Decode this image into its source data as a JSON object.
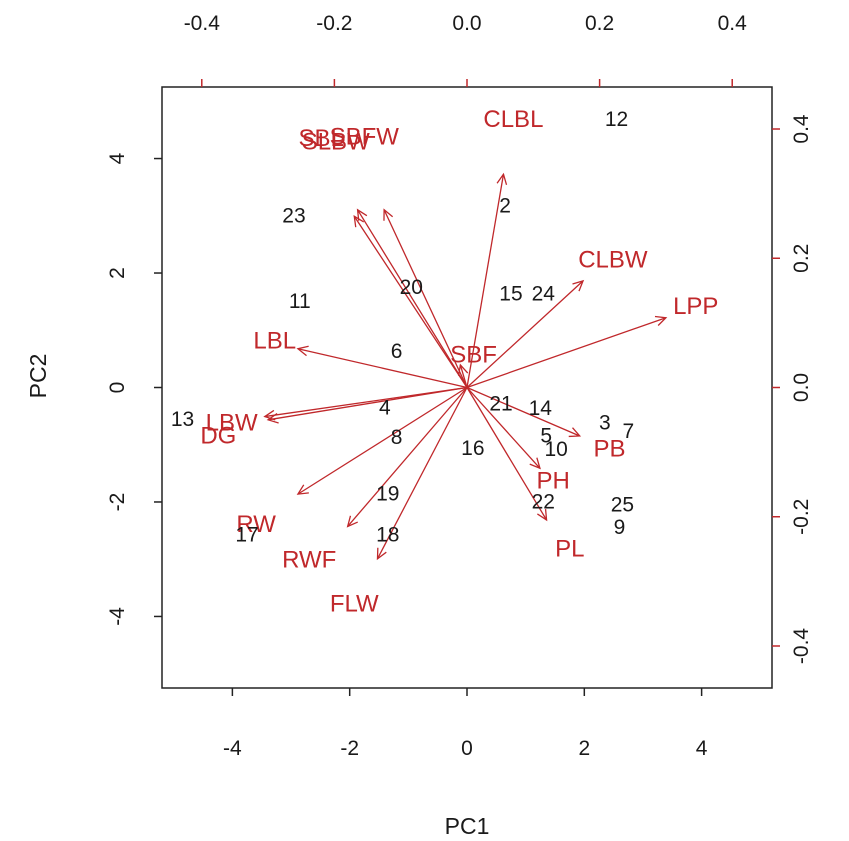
{
  "chart_data": {
    "type": "scatter",
    "subtype": "biplot",
    "xlabel": "PC1",
    "ylabel": "PC2",
    "bottom_axis": {
      "ticks": [
        -4,
        -2,
        0,
        2,
        4
      ],
      "labels": [
        "-4",
        "-2",
        "0",
        "2",
        "4"
      ],
      "range": [
        -5.2,
        5.2
      ]
    },
    "left_axis": {
      "ticks": [
        -4,
        -2,
        0,
        2,
        4
      ],
      "labels": [
        "-4",
        "-2",
        "0",
        "2",
        "4"
      ],
      "range": [
        -5.25,
        5.25
      ]
    },
    "top_axis": {
      "ticks": [
        -0.4,
        -0.2,
        0.0,
        0.2,
        0.4
      ],
      "labels": [
        "-0.4",
        "-0.2",
        "0.0",
        "0.2",
        "0.4"
      ],
      "range": [
        -0.46,
        0.46
      ]
    },
    "right_axis": {
      "ticks": [
        -0.4,
        -0.2,
        0.0,
        0.2,
        0.4
      ],
      "labels": [
        "-0.4",
        "-0.2",
        "0.0",
        "0.2",
        "0.4"
      ],
      "range": [
        -0.465,
        0.465
      ]
    },
    "observations": [
      {
        "label": "12",
        "x": 2.55,
        "y": 4.68
      },
      {
        "label": "2",
        "x": 0.65,
        "y": 3.17
      },
      {
        "label": "23",
        "x": -2.95,
        "y": 3.0
      },
      {
        "label": "20",
        "x": -0.95,
        "y": 1.75
      },
      {
        "label": "15",
        "x": 0.75,
        "y": 1.63
      },
      {
        "label": "24",
        "x": 1.3,
        "y": 1.63
      },
      {
        "label": "11",
        "x": -2.85,
        "y": 1.5
      },
      {
        "label": "6",
        "x": -1.2,
        "y": 0.63
      },
      {
        "label": "21",
        "x": 0.58,
        "y": -0.29
      },
      {
        "label": "14",
        "x": 1.25,
        "y": -0.37
      },
      {
        "label": "4",
        "x": -1.4,
        "y": -0.36
      },
      {
        "label": "13",
        "x": -4.85,
        "y": -0.56
      },
      {
        "label": "3",
        "x": 2.35,
        "y": -0.62
      },
      {
        "label": "7",
        "x": 2.75,
        "y": -0.77
      },
      {
        "label": "8",
        "x": -1.2,
        "y": -0.87
      },
      {
        "label": "5",
        "x": 1.35,
        "y": -0.85
      },
      {
        "label": "10",
        "x": 1.52,
        "y": -1.08
      },
      {
        "label": "16",
        "x": 0.1,
        "y": -1.07
      },
      {
        "label": "19",
        "x": -1.35,
        "y": -1.86
      },
      {
        "label": "22",
        "x": 1.3,
        "y": -2.0
      },
      {
        "label": "25",
        "x": 2.65,
        "y": -2.05
      },
      {
        "label": "9",
        "x": 2.6,
        "y": -2.45
      },
      {
        "label": "17",
        "x": -3.75,
        "y": -2.58
      },
      {
        "label": "18",
        "x": -1.35,
        "y": -2.58
      }
    ],
    "loadings": [
      {
        "label": "CLBL",
        "x": 0.055,
        "y": 0.33,
        "label_x": 0.07,
        "label_y": 0.415
      },
      {
        "label": "SLBW",
        "x": -0.165,
        "y": 0.275,
        "label_x": -0.198,
        "label_y": 0.38
      },
      {
        "label": "SBFW",
        "x": -0.125,
        "y": 0.275,
        "label_x": -0.155,
        "label_y": 0.388
      },
      {
        "label": "SBL",
        "x": -0.17,
        "y": 0.265,
        "label_x": -0.22,
        "label_y": 0.385
      },
      {
        "label": "CLBW",
        "x": 0.175,
        "y": 0.165,
        "label_x": 0.22,
        "label_y": 0.197
      },
      {
        "label": "LPP",
        "x": 0.3,
        "y": 0.108,
        "label_x": 0.345,
        "label_y": 0.125
      },
      {
        "label": "LBL",
        "x": -0.255,
        "y": 0.06,
        "label_x": -0.29,
        "label_y": 0.072
      },
      {
        "label": "SBF",
        "x": -0.01,
        "y": 0.035,
        "label_x": 0.01,
        "label_y": 0.05
      },
      {
        "label": "LBW",
        "x": -0.305,
        "y": -0.045,
        "label_x": -0.355,
        "label_y": -0.055
      },
      {
        "label": "DG",
        "x": -0.3,
        "y": -0.05,
        "label_x": -0.375,
        "label_y": -0.075
      },
      {
        "label": "PB",
        "x": 0.17,
        "y": -0.075,
        "label_x": 0.215,
        "label_y": -0.095
      },
      {
        "label": "PH",
        "x": 0.11,
        "y": -0.125,
        "label_x": 0.13,
        "label_y": -0.145
      },
      {
        "label": "PL",
        "x": 0.12,
        "y": -0.205,
        "label_x": 0.155,
        "label_y": -0.25
      },
      {
        "label": "RW",
        "x": -0.255,
        "y": -0.165,
        "label_x": -0.318,
        "label_y": -0.212
      },
      {
        "label": "RWF",
        "x": -0.18,
        "y": -0.215,
        "label_x": -0.238,
        "label_y": -0.267
      },
      {
        "label": "FLW",
        "x": -0.135,
        "y": -0.265,
        "label_x": -0.17,
        "label_y": -0.335
      }
    ],
    "colors": {
      "observations": "#1a1a1a",
      "loadings": "#c0282b",
      "frame": "#222222"
    },
    "grid": false
  }
}
